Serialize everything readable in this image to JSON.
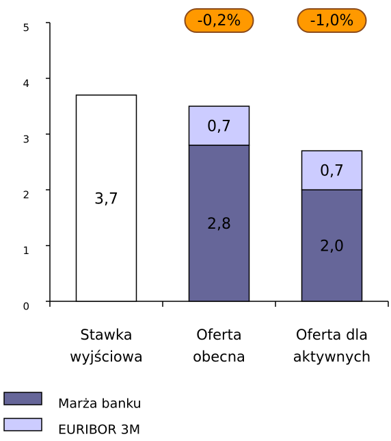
{
  "chart_data": {
    "type": "stacked-bar",
    "categories": [
      [
        "Stawka",
        "wyjściowa"
      ],
      [
        "Oferta",
        "obecna"
      ],
      [
        "Oferta dla",
        "aktywnych"
      ]
    ],
    "series": [
      {
        "color": "#ffffff",
        "values": [
          3.7,
          null,
          null
        ],
        "value_labels": [
          "3,7",
          null,
          null
        ]
      },
      {
        "name": "Marża banku",
        "color": "#666699",
        "values": [
          null,
          2.8,
          2.0
        ],
        "value_labels": [
          null,
          "2,8",
          "2,0"
        ]
      },
      {
        "name": "EURIBOR 3M",
        "color": "#ccccff",
        "values": [
          null,
          0.7,
          0.7
        ],
        "value_labels": [
          null,
          "0,7",
          "0,7"
        ]
      }
    ],
    "annotations": [
      null,
      "-0,2%",
      "-1,0%"
    ],
    "annotation_color": "#ff9900",
    "ylim": [
      0,
      5
    ],
    "yticks": [
      0,
      1,
      2,
      3,
      4,
      5
    ],
    "grid": false
  }
}
